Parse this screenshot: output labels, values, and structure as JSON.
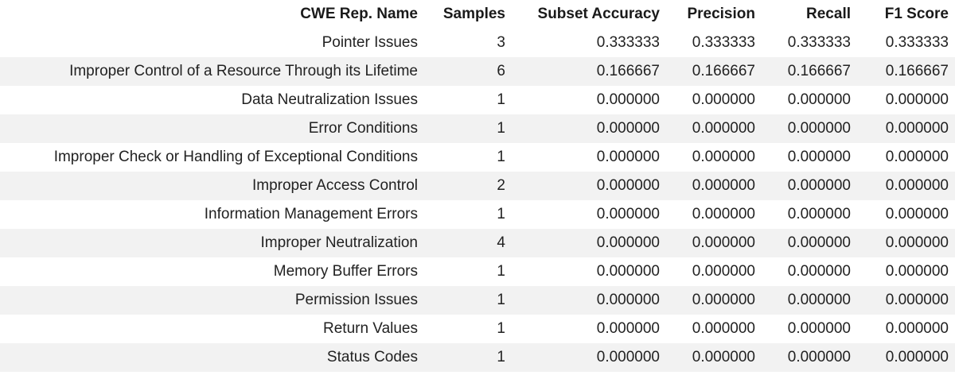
{
  "table": {
    "headers": {
      "name": "CWE Rep. Name",
      "samples": "Samples",
      "subset_accuracy": "Subset Accuracy",
      "precision": "Precision",
      "recall": "Recall",
      "f1": "F1 Score"
    },
    "rows": [
      {
        "name": "Pointer Issues",
        "samples": "3",
        "subset_accuracy": "0.333333",
        "precision": "0.333333",
        "recall": "0.333333",
        "f1": "0.333333"
      },
      {
        "name": "Improper Control of a Resource Through its Lifetime",
        "samples": "6",
        "subset_accuracy": "0.166667",
        "precision": "0.166667",
        "recall": "0.166667",
        "f1": "0.166667"
      },
      {
        "name": "Data Neutralization Issues",
        "samples": "1",
        "subset_accuracy": "0.000000",
        "precision": "0.000000",
        "recall": "0.000000",
        "f1": "0.000000"
      },
      {
        "name": "Error Conditions",
        "samples": "1",
        "subset_accuracy": "0.000000",
        "precision": "0.000000",
        "recall": "0.000000",
        "f1": "0.000000"
      },
      {
        "name": "Improper Check or Handling of Exceptional Conditions",
        "samples": "1",
        "subset_accuracy": "0.000000",
        "precision": "0.000000",
        "recall": "0.000000",
        "f1": "0.000000"
      },
      {
        "name": "Improper Access Control",
        "samples": "2",
        "subset_accuracy": "0.000000",
        "precision": "0.000000",
        "recall": "0.000000",
        "f1": "0.000000"
      },
      {
        "name": "Information Management Errors",
        "samples": "1",
        "subset_accuracy": "0.000000",
        "precision": "0.000000",
        "recall": "0.000000",
        "f1": "0.000000"
      },
      {
        "name": "Improper Neutralization",
        "samples": "4",
        "subset_accuracy": "0.000000",
        "precision": "0.000000",
        "recall": "0.000000",
        "f1": "0.000000"
      },
      {
        "name": "Memory Buffer Errors",
        "samples": "1",
        "subset_accuracy": "0.000000",
        "precision": "0.000000",
        "recall": "0.000000",
        "f1": "0.000000"
      },
      {
        "name": "Permission Issues",
        "samples": "1",
        "subset_accuracy": "0.000000",
        "precision": "0.000000",
        "recall": "0.000000",
        "f1": "0.000000"
      },
      {
        "name": "Return Values",
        "samples": "1",
        "subset_accuracy": "0.000000",
        "precision": "0.000000",
        "recall": "0.000000",
        "f1": "0.000000"
      },
      {
        "name": "Status Codes",
        "samples": "1",
        "subset_accuracy": "0.000000",
        "precision": "0.000000",
        "recall": "0.000000",
        "f1": "0.000000"
      }
    ]
  },
  "colors": {
    "stripe": "#f2f2f2",
    "background": "#ffffff",
    "text": "#1a1a1a"
  }
}
